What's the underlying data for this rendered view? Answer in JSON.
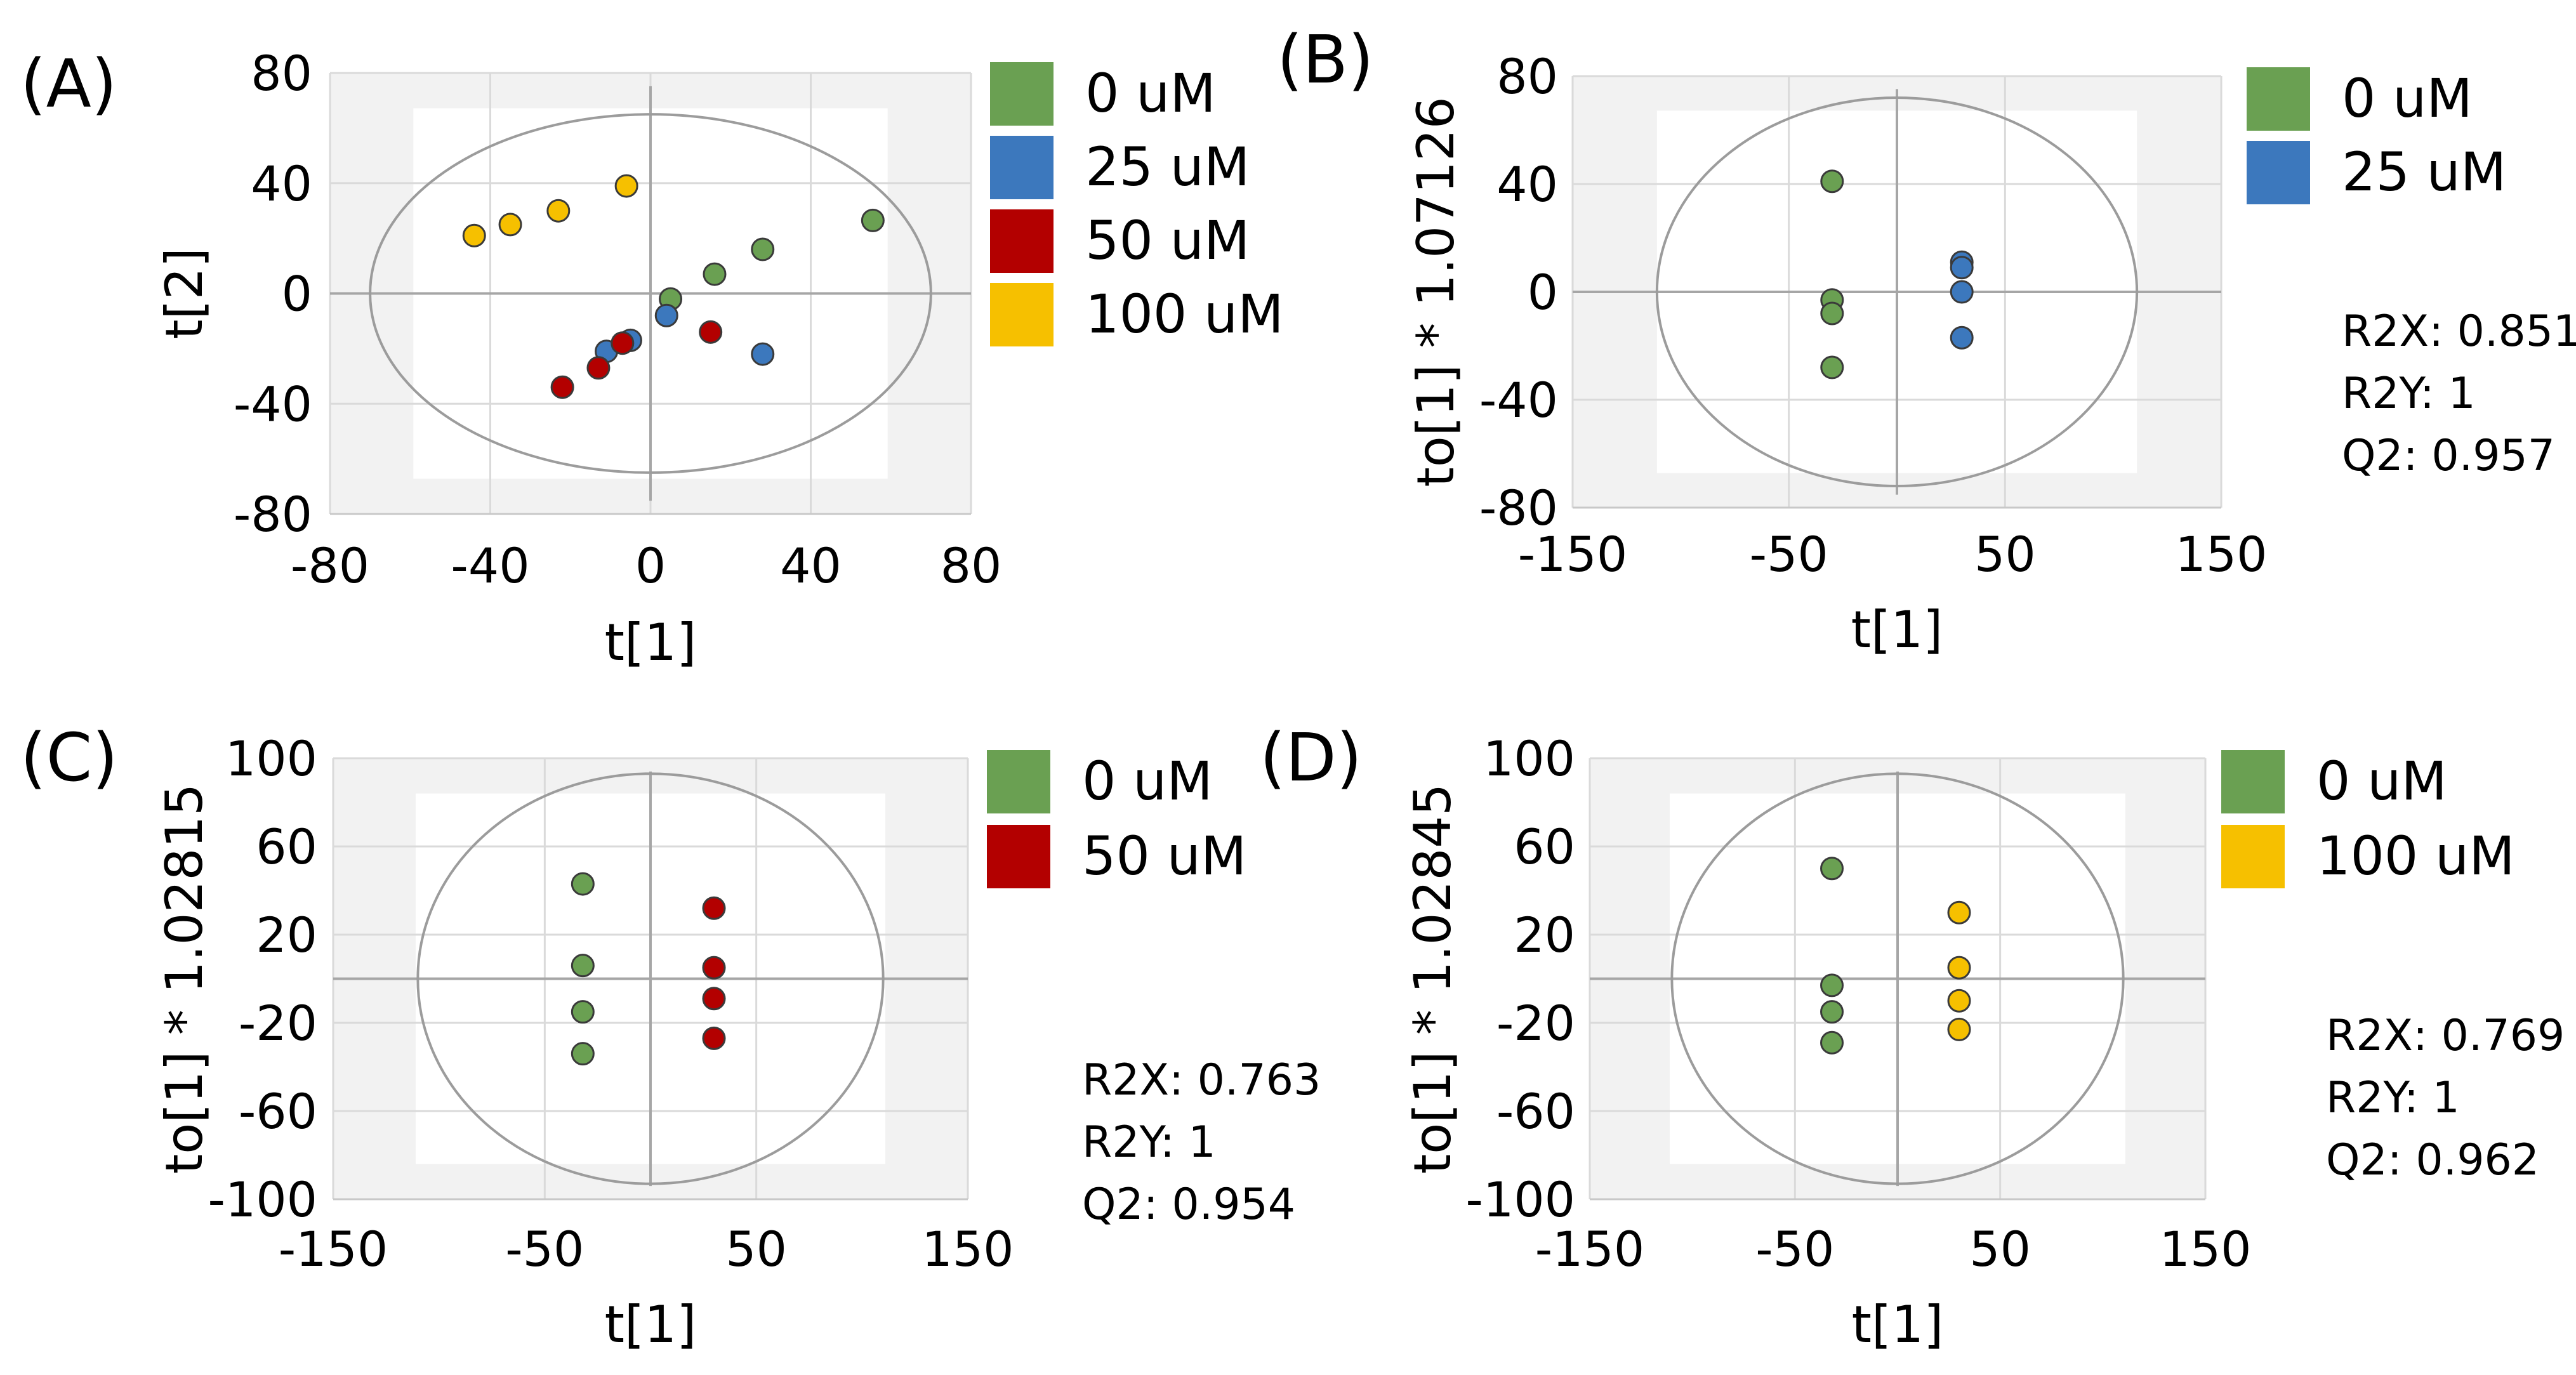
{
  "colors": {
    "plot_bg": "#f2f2f2",
    "grid": "#dadada",
    "axis_line": "#a6a6a6",
    "ellipse": "#9c9c9c",
    "marker_stroke": "#3a3a3a",
    "0 uM": "#6aa052",
    "25 uM": "#3c78bd",
    "50 uM": "#b30000",
    "100 uM": "#f6c000"
  },
  "chart_data": [
    {
      "panel": "(A)",
      "type": "scatter",
      "xlabel": "t[1]",
      "ylabel": "t[2]",
      "xlim": [
        -80,
        80
      ],
      "ylim": [
        -80,
        80
      ],
      "xticks": [
        "-80",
        "-40",
        "0",
        "40",
        "80"
      ],
      "yticks": [
        "-80",
        "-40",
        "0",
        "40",
        "80"
      ],
      "grid": true,
      "hotelling_ellipse": {
        "rx": 70,
        "ry": 65
      },
      "legend": [
        "0 uM",
        "25 uM",
        "50 uM",
        "100 uM"
      ],
      "legend_position": "right",
      "stats": [],
      "series": [
        {
          "name": "0 uM",
          "points": [
            [
              55.5,
              26.5
            ],
            [
              28,
              16
            ],
            [
              16,
              7
            ],
            [
              5,
              -2
            ]
          ]
        },
        {
          "name": "25 uM",
          "points": [
            [
              28,
              -22
            ],
            [
              4,
              -8
            ],
            [
              -5,
              -17
            ],
            [
              -11,
              -21
            ]
          ]
        },
        {
          "name": "50 uM",
          "points": [
            [
              15,
              -14
            ],
            [
              -7,
              -18
            ],
            [
              -13,
              -27
            ],
            [
              -22,
              -34
            ]
          ]
        },
        {
          "name": "100 uM",
          "points": [
            [
              -6,
              39
            ],
            [
              -23,
              30
            ],
            [
              -35,
              25
            ],
            [
              -44,
              21
            ]
          ]
        }
      ]
    },
    {
      "panel": "(B)",
      "type": "scatter",
      "xlabel": "t[1]",
      "ylabel": "to[1] * 1.07126",
      "xlim": [
        -150,
        150
      ],
      "ylim": [
        -80,
        80
      ],
      "xticks": [
        "-150",
        "-50",
        "50",
        "150"
      ],
      "yticks": [
        "-80",
        "-40",
        "0",
        "40",
        "80"
      ],
      "grid": true,
      "hotelling_ellipse": {
        "rx": 111,
        "ry": 72
      },
      "legend": [
        "0 uM",
        "25 uM"
      ],
      "legend_position": "right",
      "stats": [
        "R2X: 0.851",
        "R2Y: 1",
        "Q2: 0.957"
      ],
      "series": [
        {
          "name": "0 uM",
          "points": [
            [
              -30,
              41
            ],
            [
              -30,
              -3
            ],
            [
              -30,
              -8
            ],
            [
              -30,
              -28
            ]
          ]
        },
        {
          "name": "25 uM",
          "points": [
            [
              30,
              11
            ],
            [
              30,
              9
            ],
            [
              30,
              0
            ],
            [
              30,
              -17
            ]
          ]
        }
      ]
    },
    {
      "panel": "(C)",
      "type": "scatter",
      "xlabel": "t[1]",
      "ylabel": "to[1] * 1.02815",
      "xlim": [
        -150,
        150
      ],
      "ylim": [
        -100,
        100
      ],
      "xticks": [
        "-150",
        "-50",
        "50",
        "150"
      ],
      "yticks": [
        "-100",
        "-60",
        "-20",
        "20",
        "60",
        "100"
      ],
      "grid": true,
      "hotelling_ellipse": {
        "rx": 110,
        "ry": 93
      },
      "legend": [
        "0 uM",
        "50 uM"
      ],
      "legend_position": "right",
      "stats": [
        "R2X: 0.763",
        "R2Y: 1",
        "Q2: 0.954"
      ],
      "series": [
        {
          "name": "0 uM",
          "points": [
            [
              -32,
              43
            ],
            [
              -32,
              6
            ],
            [
              -32,
              -15
            ],
            [
              -32,
              -34
            ]
          ]
        },
        {
          "name": "50 uM",
          "points": [
            [
              30,
              32
            ],
            [
              30,
              5
            ],
            [
              30,
              -9
            ],
            [
              30,
              -27
            ]
          ]
        }
      ]
    },
    {
      "panel": "(D)",
      "type": "scatter",
      "xlabel": "t[1]",
      "ylabel": "to[1] * 1.02845",
      "xlim": [
        -150,
        150
      ],
      "ylim": [
        -100,
        100
      ],
      "xticks": [
        "-150",
        "-50",
        "50",
        "150"
      ],
      "yticks": [
        "-100",
        "-60",
        "-20",
        "20",
        "60",
        "100"
      ],
      "grid": true,
      "hotelling_ellipse": {
        "rx": 110,
        "ry": 93
      },
      "legend": [
        "0 uM",
        "100 uM"
      ],
      "legend_position": "right",
      "stats": [
        "R2X: 0.769",
        "R2Y: 1",
        "Q2: 0.962"
      ],
      "series": [
        {
          "name": "0 uM",
          "points": [
            [
              -32,
              50
            ],
            [
              -32,
              -3
            ],
            [
              -32,
              -15
            ],
            [
              -32,
              -29
            ]
          ]
        },
        {
          "name": "100 uM",
          "points": [
            [
              30,
              30
            ],
            [
              30,
              5
            ],
            [
              30,
              -10
            ],
            [
              30,
              -23
            ]
          ]
        }
      ]
    }
  ]
}
